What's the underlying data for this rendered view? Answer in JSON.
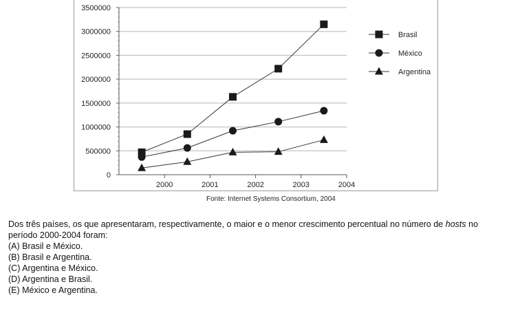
{
  "chart_data": {
    "type": "line",
    "title": "",
    "xlabel": "",
    "ylabel": "",
    "x_ticks": [
      "2000",
      "2001",
      "2002",
      "2003",
      "2004"
    ],
    "y_ticks": [
      "0",
      "500000",
      "1000000",
      "1500000",
      "2000000",
      "2500000",
      "3000000",
      "3500000"
    ],
    "xlim": [
      1999,
      2004
    ],
    "ylim": [
      0,
      3500000
    ],
    "grid": "horizontal",
    "legend": "right",
    "x": [
      1999.5,
      2000.5,
      2001.5,
      2002.5,
      2003.5
    ],
    "series": [
      {
        "name": "Brasil",
        "marker": "square",
        "values": [
          470000,
          850000,
          1630000,
          2220000,
          3150000
        ]
      },
      {
        "name": "México",
        "marker": "circle",
        "values": [
          370000,
          560000,
          920000,
          1110000,
          1340000
        ]
      },
      {
        "name": "Argentina",
        "marker": "triangle",
        "values": [
          140000,
          270000,
          470000,
          480000,
          730000
        ]
      }
    ],
    "line_color": "#333333",
    "marker_color": "#1a1a1a"
  },
  "source": "Fonte: Internet Systems Consortium, 2004",
  "question": {
    "stem_before": "Dos três países, os que apresentaram, respectivamente, o maior e o menor crescimento percentual no número de ",
    "stem_emph": "hosts",
    "stem_after": " no período 2000-2004 foram:",
    "options": [
      "(A) Brasil e México.",
      "(B) Brasil e Argentina.",
      "(C) Argentina e México.",
      "(D) Argentina e Brasil.",
      "(E) México e Argentina."
    ]
  }
}
